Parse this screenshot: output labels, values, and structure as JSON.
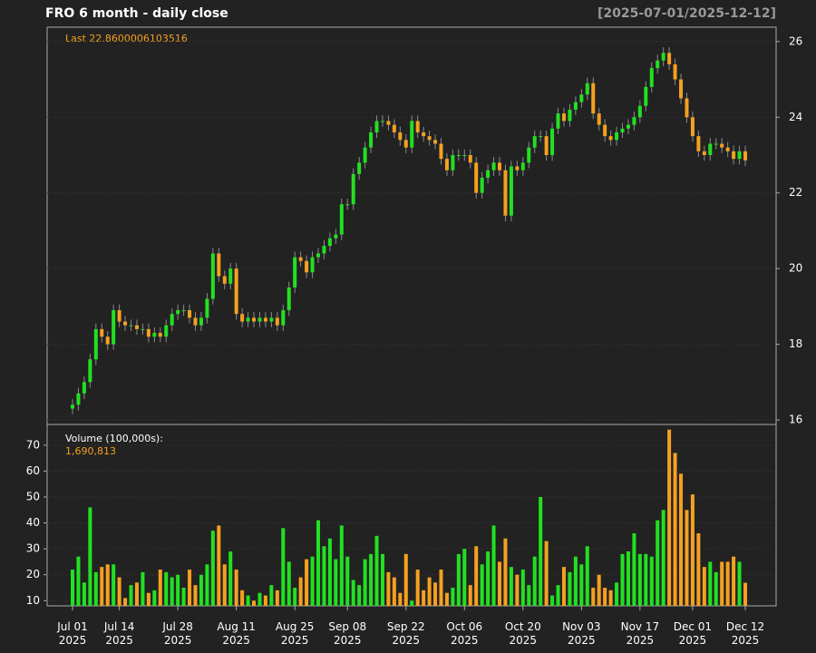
{
  "chart_data": {
    "type": "candlestick",
    "title": "FRO  6 month - daily close",
    "subtitle": "[2025-07-01/2025-12-12]",
    "annotation": "Last 22.8600006103516",
    "up_color": "#22e022",
    "down_color": "#f5a020",
    "wick_color": "#8a8a8a",
    "grid": true,
    "categories": [
      "Jul 01 2025",
      null,
      null,
      null,
      null,
      null,
      null,
      null,
      "Jul 14 2025",
      null,
      null,
      null,
      null,
      null,
      null,
      null,
      null,
      null,
      "Jul 28 2025",
      null,
      null,
      null,
      null,
      null,
      null,
      null,
      null,
      null,
      "Aug 11 2025",
      null,
      null,
      null,
      null,
      null,
      null,
      null,
      null,
      null,
      "Aug 25 2025",
      null,
      null,
      null,
      null,
      null,
      null,
      null,
      null,
      "Sep 08 2025",
      null,
      null,
      null,
      null,
      null,
      null,
      null,
      null,
      null,
      "Sep 22 2025",
      null,
      null,
      null,
      null,
      null,
      null,
      null,
      null,
      null,
      "Oct 06 2025",
      null,
      null,
      null,
      null,
      null,
      null,
      null,
      null,
      null,
      "Oct 20 2025",
      null,
      null,
      null,
      null,
      null,
      null,
      null,
      null,
      null,
      "Nov 03 2025",
      null,
      null,
      null,
      null,
      null,
      null,
      null,
      null,
      null,
      "Nov 17 2025",
      null,
      null,
      null,
      null,
      null,
      null,
      null,
      null,
      "Dec 01 2025",
      null,
      null,
      null,
      null,
      null,
      null,
      null,
      null,
      "Dec 12 2025"
    ],
    "open": [
      16.3,
      16.4,
      16.7,
      17.0,
      17.6,
      18.4,
      18.2,
      18.0,
      18.9,
      18.6,
      18.5,
      18.5,
      18.4,
      18.4,
      18.2,
      18.3,
      18.2,
      18.5,
      18.8,
      18.9,
      18.9,
      18.7,
      18.5,
      18.7,
      19.2,
      20.4,
      19.8,
      19.6,
      20.0,
      18.8,
      18.6,
      18.7,
      18.6,
      18.7,
      18.6,
      18.7,
      18.5,
      18.9,
      19.5,
      20.3,
      20.2,
      19.9,
      20.3,
      20.4,
      20.6,
      20.8,
      20.9,
      21.7,
      21.7,
      22.5,
      22.8,
      23.2,
      23.6,
      23.9,
      23.9,
      23.8,
      23.6,
      23.4,
      23.2,
      23.9,
      23.6,
      23.5,
      23.4,
      23.3,
      22.9,
      22.6,
      23.0,
      23.0,
      23.0,
      22.8,
      22.0,
      22.4,
      22.6,
      22.8,
      22.6,
      21.4,
      22.7,
      22.6,
      22.8,
      23.2,
      23.5,
      23.5,
      23.0,
      23.7,
      24.1,
      23.9,
      24.2,
      24.4,
      24.6,
      24.9,
      24.1,
      23.8,
      23.5,
      23.4,
      23.6,
      23.7,
      23.8,
      24.0,
      24.3,
      24.8,
      25.3,
      25.5,
      25.7,
      25.4,
      25.0,
      24.5,
      24.0,
      23.5,
      23.1,
      23.0,
      23.3,
      23.3,
      23.2,
      23.1,
      22.9,
      23.1
    ],
    "high": [
      16.55,
      16.85,
      17.15,
      17.75,
      18.55,
      18.55,
      18.35,
      19.05,
      19.05,
      18.75,
      18.65,
      18.65,
      18.55,
      18.55,
      18.45,
      18.45,
      18.65,
      18.95,
      19.05,
      19.05,
      19.05,
      18.85,
      18.85,
      19.35,
      20.55,
      20.55,
      19.95,
      20.15,
      20.15,
      18.95,
      18.85,
      18.85,
      18.85,
      18.85,
      18.85,
      18.85,
      19.05,
      19.65,
      20.45,
      20.45,
      20.35,
      20.45,
      20.55,
      20.75,
      20.95,
      21.05,
      21.85,
      21.85,
      22.65,
      22.95,
      23.35,
      23.75,
      24.05,
      24.05,
      24.05,
      23.95,
      23.75,
      23.55,
      24.05,
      24.05,
      23.75,
      23.65,
      23.55,
      23.45,
      23.05,
      23.15,
      23.15,
      23.15,
      23.15,
      22.95,
      22.55,
      22.75,
      22.95,
      22.95,
      22.75,
      22.85,
      22.85,
      22.95,
      23.35,
      23.65,
      23.65,
      23.65,
      23.85,
      24.25,
      24.25,
      24.35,
      24.55,
      24.75,
      25.05,
      25.05,
      24.25,
      23.95,
      23.65,
      23.75,
      23.85,
      23.95,
      24.15,
      24.45,
      24.95,
      25.45,
      25.65,
      25.85,
      25.85,
      25.55,
      25.15,
      24.65,
      24.15,
      23.65,
      23.25,
      23.45,
      23.45,
      23.45,
      23.35,
      23.25,
      23.25,
      23.25
    ],
    "low": [
      16.15,
      16.25,
      16.55,
      16.85,
      17.45,
      18.05,
      17.85,
      17.85,
      18.45,
      18.35,
      18.35,
      18.25,
      18.25,
      18.05,
      18.05,
      18.05,
      18.05,
      18.35,
      18.65,
      18.75,
      18.55,
      18.35,
      18.35,
      18.55,
      19.05,
      19.65,
      19.45,
      19.45,
      18.65,
      18.45,
      18.45,
      18.45,
      18.45,
      18.45,
      18.45,
      18.35,
      18.35,
      18.75,
      19.35,
      20.05,
      19.75,
      19.75,
      20.15,
      20.25,
      20.45,
      20.65,
      20.75,
      21.55,
      21.55,
      22.35,
      22.65,
      23.05,
      23.45,
      23.75,
      23.65,
      23.45,
      23.25,
      23.05,
      23.05,
      23.45,
      23.35,
      23.25,
      23.15,
      22.75,
      22.45,
      22.45,
      22.85,
      22.85,
      22.65,
      21.85,
      21.85,
      22.25,
      22.45,
      22.45,
      21.25,
      21.25,
      22.45,
      22.45,
      22.65,
      23.05,
      23.35,
      22.85,
      22.85,
      23.55,
      23.75,
      23.75,
      24.05,
      24.25,
      24.45,
      23.95,
      23.65,
      23.35,
      23.25,
      23.25,
      23.45,
      23.55,
      23.65,
      23.85,
      24.15,
      24.65,
      25.15,
      25.35,
      25.25,
      24.85,
      24.35,
      23.85,
      23.35,
      22.95,
      22.85,
      22.85,
      23.15,
      23.05,
      22.95,
      22.75,
      22.75,
      22.71
    ],
    "close": [
      16.4,
      16.7,
      17.0,
      17.6,
      18.4,
      18.2,
      18.0,
      18.9,
      18.6,
      18.5,
      18.5,
      18.4,
      18.4,
      18.2,
      18.3,
      18.2,
      18.5,
      18.8,
      18.9,
      18.9,
      18.7,
      18.5,
      18.7,
      19.2,
      20.4,
      19.8,
      19.6,
      20.0,
      18.8,
      18.6,
      18.7,
      18.6,
      18.7,
      18.6,
      18.7,
      18.5,
      18.9,
      19.5,
      20.3,
      20.2,
      19.9,
      20.3,
      20.4,
      20.6,
      20.8,
      20.9,
      21.7,
      21.7,
      22.5,
      22.8,
      23.2,
      23.6,
      23.9,
      23.9,
      23.8,
      23.6,
      23.4,
      23.2,
      23.9,
      23.6,
      23.5,
      23.4,
      23.3,
      22.9,
      22.6,
      23.0,
      23.0,
      23.0,
      22.8,
      22.0,
      22.4,
      22.6,
      22.8,
      22.6,
      21.4,
      22.7,
      22.6,
      22.8,
      23.2,
      23.5,
      23.5,
      23.0,
      23.7,
      24.1,
      23.9,
      24.2,
      24.4,
      24.6,
      24.9,
      24.1,
      23.8,
      23.5,
      23.4,
      23.6,
      23.7,
      23.8,
      24.0,
      24.3,
      24.8,
      25.3,
      25.5,
      25.7,
      25.4,
      25.0,
      24.5,
      24.0,
      23.5,
      23.1,
      23.0,
      23.3,
      23.3,
      23.2,
      23.1,
      22.9,
      23.1,
      22.86
    ],
    "ylim": [
      15.88,
      26.38
    ],
    "yticks": [
      16,
      18,
      20,
      22,
      24,
      26
    ],
    "volume": {
      "type": "bar",
      "label": "Volume (100,000s):",
      "last_label": "1,690,813",
      "values": [
        22,
        27,
        17,
        46,
        21,
        23,
        24,
        24,
        19,
        11,
        16,
        17,
        21,
        13,
        14,
        22,
        21,
        19,
        20,
        15,
        22,
        16,
        20,
        24,
        37,
        39,
        24,
        29,
        22,
        14,
        12,
        10,
        13,
        12,
        16,
        14,
        38,
        25,
        15,
        19,
        26,
        27,
        41,
        31,
        34,
        26,
        39,
        27,
        18,
        16,
        26,
        28,
        35,
        28,
        21,
        19,
        13,
        28,
        10,
        22,
        14,
        19,
        17,
        22,
        13,
        15,
        28,
        30,
        16,
        31,
        24,
        29,
        39,
        25,
        34,
        23,
        20,
        22,
        16,
        27,
        50,
        33,
        12,
        16,
        23,
        21,
        27,
        24,
        31,
        15,
        20,
        15,
        14,
        17,
        28,
        29,
        36,
        28,
        28,
        27,
        41,
        45,
        76,
        67,
        59,
        45,
        51,
        36,
        23,
        25,
        21,
        25,
        25,
        27,
        25,
        16.90813
      ],
      "ylim": [
        8,
        78
      ],
      "yticks": [
        10,
        20,
        30,
        40,
        50,
        60,
        70
      ]
    }
  }
}
